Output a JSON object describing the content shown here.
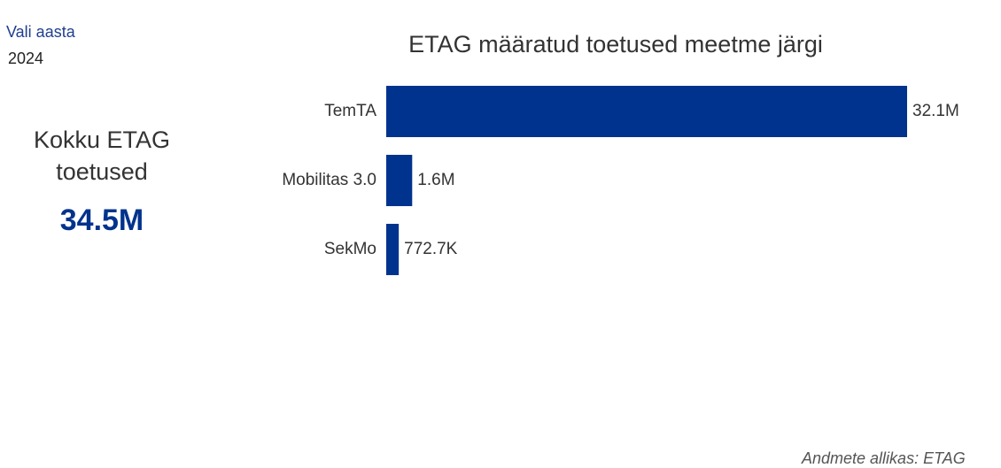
{
  "filter": {
    "label": "Vali aasta",
    "value": "2024"
  },
  "kpi": {
    "label": "Kokku ETAG toetused",
    "value": "34.5M"
  },
  "chart_data": {
    "type": "bar",
    "orientation": "horizontal",
    "title": "ETAG määratud toetused meetme järgi",
    "categories": [
      "TemTA",
      "Mobilitas 3.0",
      "SekMo"
    ],
    "values": [
      32100000,
      1600000,
      772700
    ],
    "value_labels": [
      "32.1M",
      "1.6M",
      "772.7K"
    ],
    "color": "#00338d",
    "xlim": [
      0,
      32100000
    ]
  },
  "footer": "Andmete allikas: ETAG"
}
